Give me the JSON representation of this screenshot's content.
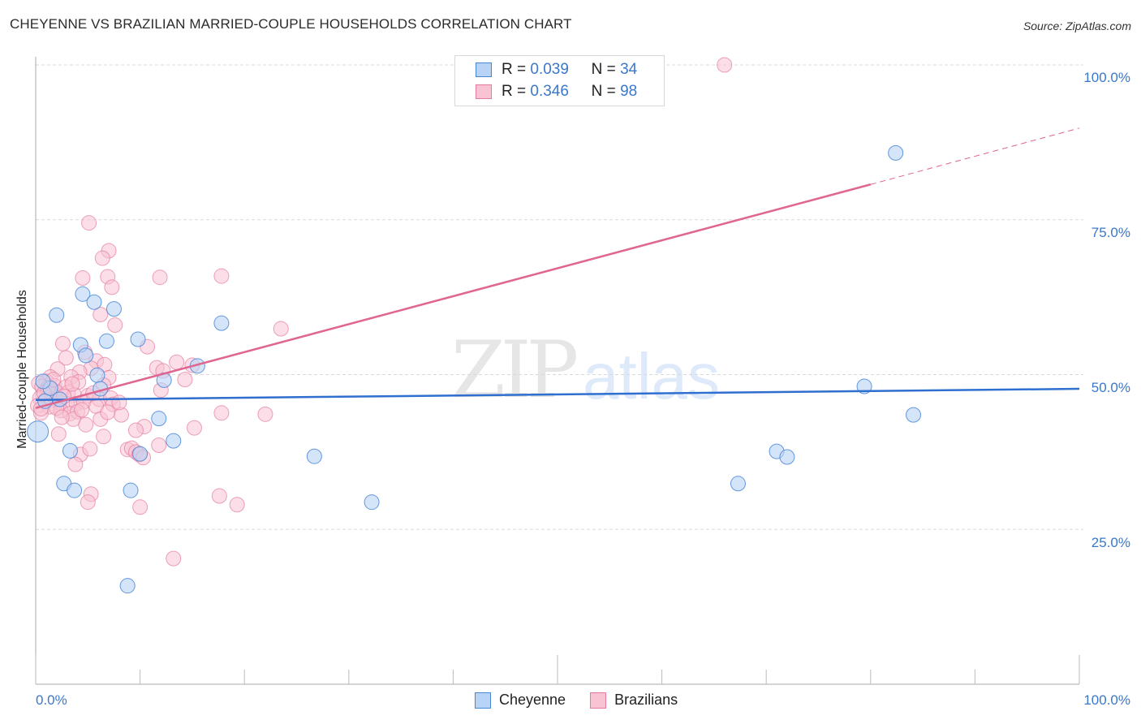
{
  "header": {
    "title": "CHEYENNE VS BRAZILIAN MARRIED-COUPLE HOUSEHOLDS CORRELATION CHART",
    "source": "Source: ZipAtlas.com"
  },
  "watermark": {
    "zip": "ZIP",
    "atlas": "atlas"
  },
  "axes": {
    "ylabel": "Married-couple Households",
    "yticks": [
      "100.0%",
      "75.0%",
      "50.0%",
      "25.0%"
    ],
    "xticks": [
      "0.0%",
      "100.0%"
    ]
  },
  "legend_top": {
    "rows": [
      {
        "r_label": "R =",
        "r_value": "0.039",
        "n_label": "N =",
        "n_value": "34"
      },
      {
        "r_label": "R =",
        "r_value": "0.346",
        "n_label": "N =",
        "n_value": "98"
      }
    ]
  },
  "legend_bottom": {
    "items": [
      "Cheyenne",
      "Brazilians"
    ]
  },
  "colors": {
    "cheyenne_fill": "#b8d3f5",
    "cheyenne_stroke": "#4a86d8",
    "cheyenne_line": "#2f6fcf",
    "brazilians_fill": "#f8c3d3",
    "brazilians_stroke": "#e57a9c",
    "brazilians_line": "#e06690",
    "tick_label": "#3a78c9"
  },
  "chart_data": {
    "type": "scatter",
    "title": "CHEYENNE VS BRAZILIAN MARRIED-COUPLE HOUSEHOLDS CORRELATION CHART",
    "xlabel": "",
    "ylabel": "Married-couple Households",
    "xlim": [
      0,
      100
    ],
    "ylim": [
      0,
      100
    ],
    "grid": true,
    "legend_position": "top-center + bottom",
    "series": [
      {
        "name": "Cheyenne",
        "r": 0.039,
        "n": 34,
        "trend": {
          "x": [
            0,
            100
          ],
          "y": [
            45.9,
            47.7
          ]
        },
        "points": [
          [
            0.2,
            40.8
          ],
          [
            2.0,
            59.6
          ],
          [
            4.3,
            54.8
          ],
          [
            4.5,
            63.0
          ],
          [
            5.6,
            61.7
          ],
          [
            7.5,
            60.6
          ],
          [
            6.8,
            55.4
          ],
          [
            4.8,
            53.1
          ],
          [
            5.9,
            49.9
          ],
          [
            6.2,
            47.7
          ],
          [
            9.8,
            55.7
          ],
          [
            12.3,
            49.1
          ],
          [
            17.8,
            58.3
          ],
          [
            15.5,
            51.4
          ],
          [
            11.8,
            42.9
          ],
          [
            13.2,
            39.3
          ],
          [
            3.3,
            37.7
          ],
          [
            10.0,
            37.2
          ],
          [
            2.7,
            32.4
          ],
          [
            3.7,
            31.3
          ],
          [
            9.1,
            31.3
          ],
          [
            26.7,
            36.8
          ],
          [
            32.2,
            29.4
          ],
          [
            8.8,
            15.9
          ],
          [
            82.4,
            85.8
          ],
          [
            79.4,
            48.1
          ],
          [
            84.1,
            43.5
          ],
          [
            71.0,
            37.6
          ],
          [
            72.0,
            36.7
          ],
          [
            67.3,
            32.4
          ],
          [
            0.9,
            45.7
          ],
          [
            1.4,
            47.8
          ],
          [
            0.7,
            48.9
          ],
          [
            2.3,
            46.0
          ]
        ]
      },
      {
        "name": "Brazilians",
        "r": 0.346,
        "n": 98,
        "trend": {
          "x": [
            0,
            80,
            100
          ],
          "y": [
            44.6,
            80.7,
            89.8
          ],
          "dashed_after_x": 80
        },
        "points": [
          [
            66.0,
            100.0
          ],
          [
            5.1,
            74.5
          ],
          [
            7.0,
            70.0
          ],
          [
            6.4,
            68.8
          ],
          [
            4.5,
            65.6
          ],
          [
            11.9,
            65.7
          ],
          [
            17.8,
            65.9
          ],
          [
            6.9,
            65.8
          ],
          [
            7.3,
            64.1
          ],
          [
            6.2,
            59.7
          ],
          [
            7.6,
            58.0
          ],
          [
            23.5,
            57.4
          ],
          [
            2.6,
            55.0
          ],
          [
            10.7,
            54.5
          ],
          [
            4.7,
            53.6
          ],
          [
            2.9,
            52.7
          ],
          [
            5.8,
            52.2
          ],
          [
            6.6,
            51.6
          ],
          [
            11.6,
            51.1
          ],
          [
            13.5,
            52.0
          ],
          [
            15.0,
            51.5
          ],
          [
            5.3,
            51.0
          ],
          [
            4.2,
            50.4
          ],
          [
            2.1,
            50.9
          ],
          [
            12.2,
            50.6
          ],
          [
            1.4,
            49.6
          ],
          [
            3.4,
            49.6
          ],
          [
            7.0,
            49.5
          ],
          [
            14.3,
            49.2
          ],
          [
            1.0,
            48.9
          ],
          [
            0.3,
            48.6
          ],
          [
            0.6,
            48.1
          ],
          [
            1.8,
            48.2
          ],
          [
            2.9,
            48.0
          ],
          [
            4.1,
            48.8
          ],
          [
            6.5,
            48.3
          ],
          [
            12.0,
            47.5
          ],
          [
            1.1,
            47.4
          ],
          [
            1.9,
            47.3
          ],
          [
            3.1,
            47.1
          ],
          [
            3.7,
            46.7
          ],
          [
            5.0,
            46.6
          ],
          [
            6.1,
            46.0
          ],
          [
            7.2,
            46.2
          ],
          [
            0.4,
            46.2
          ],
          [
            0.9,
            45.9
          ],
          [
            1.5,
            45.9
          ],
          [
            2.3,
            45.5
          ],
          [
            3.0,
            45.3
          ],
          [
            3.9,
            45.3
          ],
          [
            4.6,
            45.6
          ],
          [
            7.4,
            45.2
          ],
          [
            0.2,
            45.0
          ],
          [
            1.3,
            44.8
          ],
          [
            2.4,
            44.2
          ],
          [
            3.3,
            43.7
          ],
          [
            4.0,
            44.0
          ],
          [
            5.8,
            44.9
          ],
          [
            8.2,
            43.5
          ],
          [
            17.8,
            43.8
          ],
          [
            22.0,
            43.6
          ],
          [
            0.5,
            43.8
          ],
          [
            3.6,
            42.8
          ],
          [
            6.2,
            42.8
          ],
          [
            4.8,
            41.9
          ],
          [
            10.4,
            41.6
          ],
          [
            9.6,
            41.0
          ],
          [
            15.2,
            41.4
          ],
          [
            2.2,
            40.4
          ],
          [
            6.5,
            40.0
          ],
          [
            11.8,
            38.6
          ],
          [
            8.8,
            37.9
          ],
          [
            9.2,
            38.1
          ],
          [
            9.6,
            37.5
          ],
          [
            9.9,
            37.1
          ],
          [
            10.3,
            36.6
          ],
          [
            4.3,
            37.1
          ],
          [
            5.2,
            38.0
          ],
          [
            3.8,
            35.5
          ],
          [
            17.6,
            30.4
          ],
          [
            19.3,
            29.0
          ],
          [
            5.3,
            30.7
          ],
          [
            5.0,
            29.4
          ],
          [
            10.0,
            28.6
          ],
          [
            13.2,
            20.3
          ],
          [
            1.6,
            46.7
          ],
          [
            2.7,
            46.5
          ],
          [
            1.2,
            47.9
          ],
          [
            0.8,
            47.0
          ],
          [
            2.0,
            44.6
          ],
          [
            3.5,
            48.5
          ],
          [
            1.7,
            49.2
          ],
          [
            0.5,
            44.5
          ],
          [
            2.5,
            43.1
          ],
          [
            5.5,
            47.0
          ],
          [
            4.4,
            44.3
          ],
          [
            8.0,
            45.5
          ],
          [
            6.9,
            43.9
          ]
        ]
      }
    ]
  }
}
